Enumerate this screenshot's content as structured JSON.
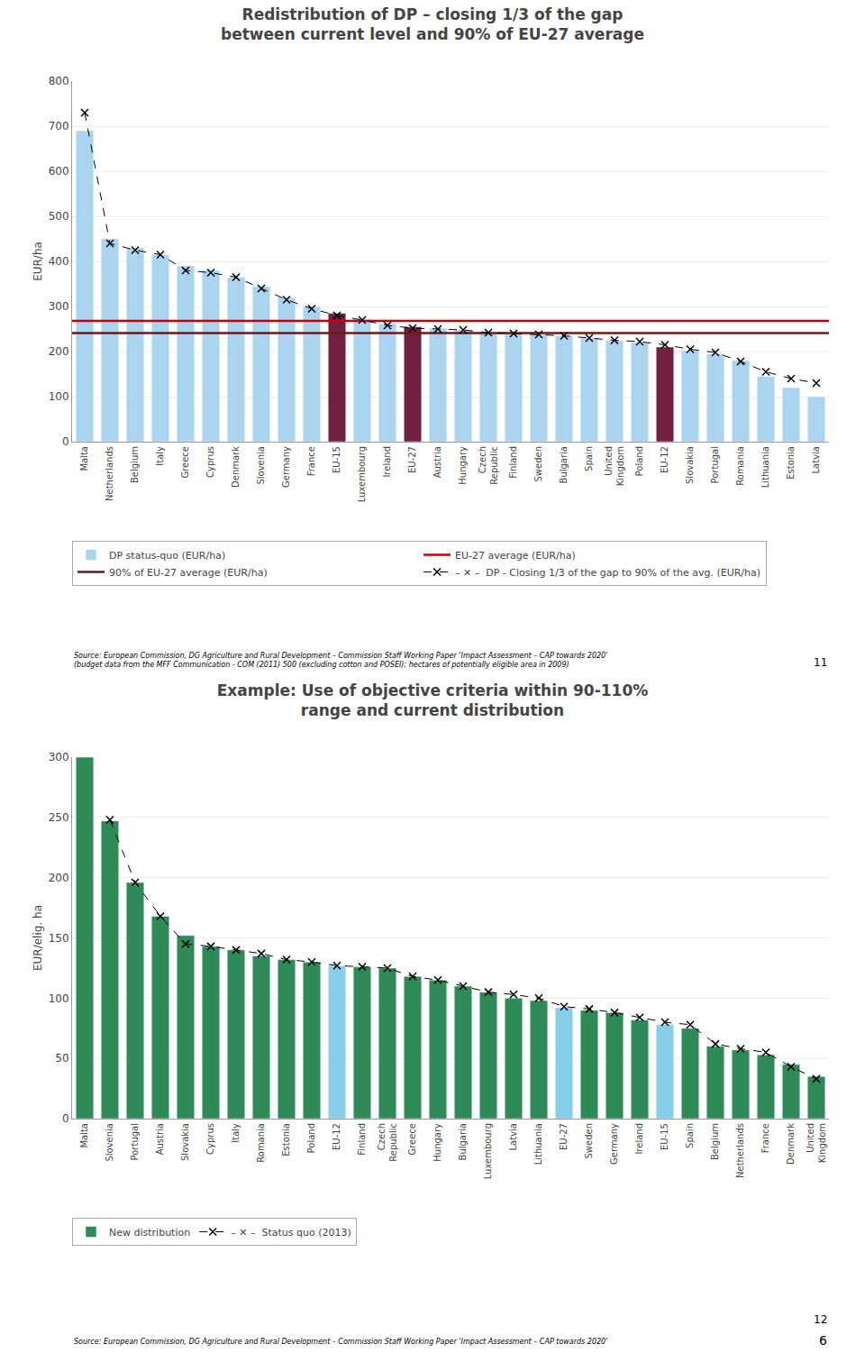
{
  "chart_data": [
    {
      "type": "bar",
      "title": "Redistribution of DP – closing 1/3 of the gap\nbetween current level and 90% of EU-27 average",
      "ylabel": "EUR/ha",
      "ylim": [
        0,
        800
      ],
      "yticks": [
        0,
        100,
        200,
        300,
        400,
        500,
        600,
        700,
        800
      ],
      "grid": true,
      "legend": "bottom",
      "categories": [
        "Malta",
        "Netherlands",
        "Belgium",
        "Italy",
        "Greece",
        "Cyprus",
        "Denmark",
        "Slovenia",
        "Germany",
        "France",
        "EU-15",
        "Luxembourg",
        "Ireland",
        "EU-27",
        "Austria",
        "Hungary",
        "Czech\nRepublic",
        "Finland",
        "Sweden",
        "Bulgaria",
        "Spain",
        "United\nKingdom",
        "Poland",
        "EU-12",
        "Slovakia",
        "Portugal",
        "Romania",
        "Lithuania",
        "Estonia",
        "Latvia"
      ],
      "series": [
        {
          "name": "DP status-quo (EUR/ha)",
          "type": "bar",
          "colors": [
            "#aad4f0",
            "#aad4f0",
            "#aad4f0",
            "#aad4f0",
            "#aad4f0",
            "#aad4f0",
            "#aad4f0",
            "#aad4f0",
            "#aad4f0",
            "#aad4f0",
            "#722040",
            "#aad4f0",
            "#aad4f0",
            "#722040",
            "#aad4f0",
            "#aad4f0",
            "#aad4f0",
            "#aad4f0",
            "#aad4f0",
            "#aad4f0",
            "#aad4f0",
            "#aad4f0",
            "#aad4f0",
            "#722040",
            "#aad4f0",
            "#aad4f0",
            "#aad4f0",
            "#aad4f0",
            "#aad4f0",
            "#aad4f0"
          ],
          "values": [
            690,
            450,
            430,
            415,
            390,
            380,
            365,
            345,
            320,
            300,
            285,
            272,
            262,
            255,
            252,
            248,
            242,
            240,
            238,
            235,
            230,
            225,
            220,
            210,
            202,
            195,
            180,
            145,
            120,
            100
          ]
        },
        {
          "name": "EU-27 average (EUR/ha)",
          "type": "hline",
          "color": "#cc0000",
          "value": 268
        },
        {
          "name": "90% of EU-27 average (EUR/ha)",
          "type": "hline",
          "color": "#6b1a1a",
          "value": 241
        },
        {
          "name": "– ✕ –  DP - Closing 1/3 of the gap to 90% of the avg. (EUR/ha)",
          "type": "line",
          "color": "#000000",
          "marker": "x",
          "line_style": "dashed",
          "values": [
            730,
            440,
            425,
            415,
            380,
            375,
            365,
            340,
            315,
            295,
            280,
            270,
            258,
            252,
            250,
            248,
            242,
            240,
            238,
            235,
            230,
            225,
            222,
            215,
            205,
            198,
            178,
            155,
            140,
            130
          ]
        }
      ],
      "annotations": [
        "Source: European Commission, DG Agriculture and Rural Development – Commission Staff Working Paper 'Impact Assessment – CAP towards 2020'\n(budget data from the MFF Communication - COM (2011) 500 (excluding cotton and POSEI); hectares of potentially eligible area in 2009)",
        "11"
      ]
    },
    {
      "type": "bar",
      "title": "Example: Use of objective criteria within 90-110%\nrange and current distribution",
      "ylabel": "EUR/elig. ha",
      "ylim": [
        0,
        300
      ],
      "yticks": [
        0,
        50,
        100,
        150,
        200,
        250,
        300
      ],
      "grid": true,
      "legend": "bottom",
      "categories": [
        "Malta",
        "Slovenia",
        "Portugal",
        "Austria",
        "Slovakia",
        "Cyprus",
        "Italy",
        "Romania",
        "Estonia",
        "Poland",
        "EU-12",
        "Finland",
        "Czech\nRepublic",
        "Greece",
        "Hungary",
        "Bulgaria",
        "Luxembourg",
        "Latvia",
        "Lithuania",
        "EU-27",
        "Sweden",
        "Germany",
        "Ireland",
        "EU-15",
        "Spain",
        "Belgium",
        "Netherlands",
        "France",
        "Denmark",
        "United\nKingdom"
      ],
      "series": [
        {
          "name": "New distribution",
          "type": "bar",
          "colors": [
            "#2e8b57",
            "#2e8b57",
            "#2e8b57",
            "#2e8b57",
            "#2e8b57",
            "#2e8b57",
            "#2e8b57",
            "#2e8b57",
            "#2e8b57",
            "#2e8b57",
            "#87ceeb",
            "#2e8b57",
            "#2e8b57",
            "#2e8b57",
            "#2e8b57",
            "#2e8b57",
            "#2e8b57",
            "#2e8b57",
            "#2e8b57",
            "#87ceeb",
            "#2e8b57",
            "#2e8b57",
            "#2e8b57",
            "#87ceeb",
            "#2e8b57",
            "#2e8b57",
            "#2e8b57",
            "#2e8b57",
            "#2e8b57",
            "#2e8b57"
          ],
          "values": [
            300,
            247,
            196,
            168,
            152,
            143,
            140,
            135,
            132,
            130,
            127,
            126,
            125,
            118,
            115,
            110,
            105,
            100,
            98,
            92,
            90,
            88,
            82,
            78,
            75,
            60,
            57,
            53,
            45,
            35
          ]
        },
        {
          "name": "– ✕ –  Status quo (2013)",
          "type": "line",
          "color": "#000000",
          "marker": "x",
          "line_style": "dashed",
          "values": [
            null,
            248,
            196,
            168,
            145,
            143,
            140,
            137,
            132,
            130,
            127,
            126,
            125,
            118,
            115,
            110,
            105,
            103,
            100,
            93,
            91,
            88,
            84,
            80,
            78,
            62,
            58,
            55,
            43,
            33
          ]
        }
      ],
      "annotations": [
        "Source: European Commission, DG Agriculture and Rural Development – Commission Staff Working Paper 'Impact Assessment – CAP towards 2020'",
        "12",
        "6"
      ]
    }
  ]
}
